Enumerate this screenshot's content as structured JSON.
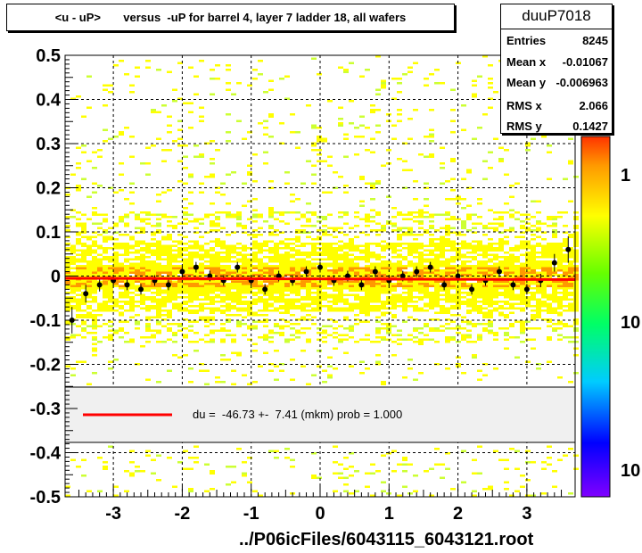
{
  "title": "<u - uP>       versus  -uP for barrel 4, layer 7 ladder 18, all wafers",
  "stats": {
    "name": "duuP7018",
    "rows": [
      {
        "label": "Entries",
        "value": "8245"
      },
      {
        "label": "Mean x",
        "value": "-0.01067"
      },
      {
        "label": "Mean y",
        "value": "-0.006963"
      },
      {
        "label": "RMS x",
        "value": "2.066"
      },
      {
        "label": "RMS y",
        "value": "0.1427"
      }
    ]
  },
  "fit_legend": {
    "text": "du =  -46.73 +-  7.41 (mkm) prob = 1.000",
    "line_color": "#ff0000"
  },
  "footer": "../P06icFiles/6043115_6043121.root",
  "colors": {
    "fit_line": "#ff0000",
    "profile_points": "#000000",
    "hist_main": "#ffff00",
    "hist_dense": "#ff9900",
    "hist_sparse": "#ccff33"
  },
  "chart_data": {
    "type": "heatmap",
    "title": "<u - uP>       versus  -uP for barrel 4, layer 7 ladder 18, all wafers",
    "xlim": [
      -3.7,
      3.7
    ],
    "ylim": [
      -0.5,
      0.5
    ],
    "x_ticks": [
      -3,
      -2,
      -1,
      0,
      1,
      2,
      3
    ],
    "y_ticks": [
      -0.5,
      -0.4,
      -0.3,
      -0.2,
      -0.1,
      0,
      0.1,
      0.2,
      0.3,
      0.4,
      0.5
    ],
    "y_tick_labels": [
      "-0.5",
      "-0.4",
      "-0.3",
      "-0.2",
      "-0.1",
      "0",
      "0.1",
      "0.2",
      "0.3",
      "0.4",
      "0.5"
    ],
    "grid": true,
    "colorbar": {
      "labels": [
        "1",
        "10",
        "10"
      ],
      "scale": "log"
    },
    "fit": {
      "y_left": -0.005,
      "y_right": -0.008
    },
    "profile": {
      "x": [
        -3.6,
        -3.4,
        -3.2,
        -3.0,
        -2.8,
        -2.6,
        -2.4,
        -2.2,
        -2.0,
        -1.8,
        -1.6,
        -1.4,
        -1.2,
        -1.0,
        -0.8,
        -0.6,
        -0.4,
        -0.2,
        0.0,
        0.2,
        0.4,
        0.6,
        0.8,
        1.0,
        1.2,
        1.4,
        1.6,
        1.8,
        2.0,
        2.2,
        2.4,
        2.6,
        2.8,
        3.0,
        3.2,
        3.4,
        3.6
      ],
      "y": [
        -0.1,
        -0.04,
        -0.02,
        -0.01,
        -0.02,
        -0.03,
        -0.01,
        -0.02,
        0.01,
        0.02,
        0.0,
        -0.01,
        0.02,
        -0.01,
        -0.03,
        0.0,
        -0.01,
        0.01,
        0.02,
        -0.01,
        0.0,
        -0.02,
        0.01,
        -0.01,
        0.0,
        0.01,
        0.02,
        -0.02,
        0.0,
        -0.03,
        -0.01,
        0.01,
        -0.02,
        -0.03,
        -0.01,
        0.03,
        0.06
      ],
      "err": [
        0.03,
        0.02,
        0.015,
        0.012,
        0.012,
        0.012,
        0.012,
        0.012,
        0.012,
        0.012,
        0.012,
        0.012,
        0.012,
        0.012,
        0.012,
        0.012,
        0.012,
        0.012,
        0.012,
        0.012,
        0.012,
        0.012,
        0.012,
        0.012,
        0.012,
        0.012,
        0.012,
        0.012,
        0.012,
        0.012,
        0.012,
        0.012,
        0.012,
        0.012,
        0.015,
        0.02,
        0.03
      ]
    }
  }
}
